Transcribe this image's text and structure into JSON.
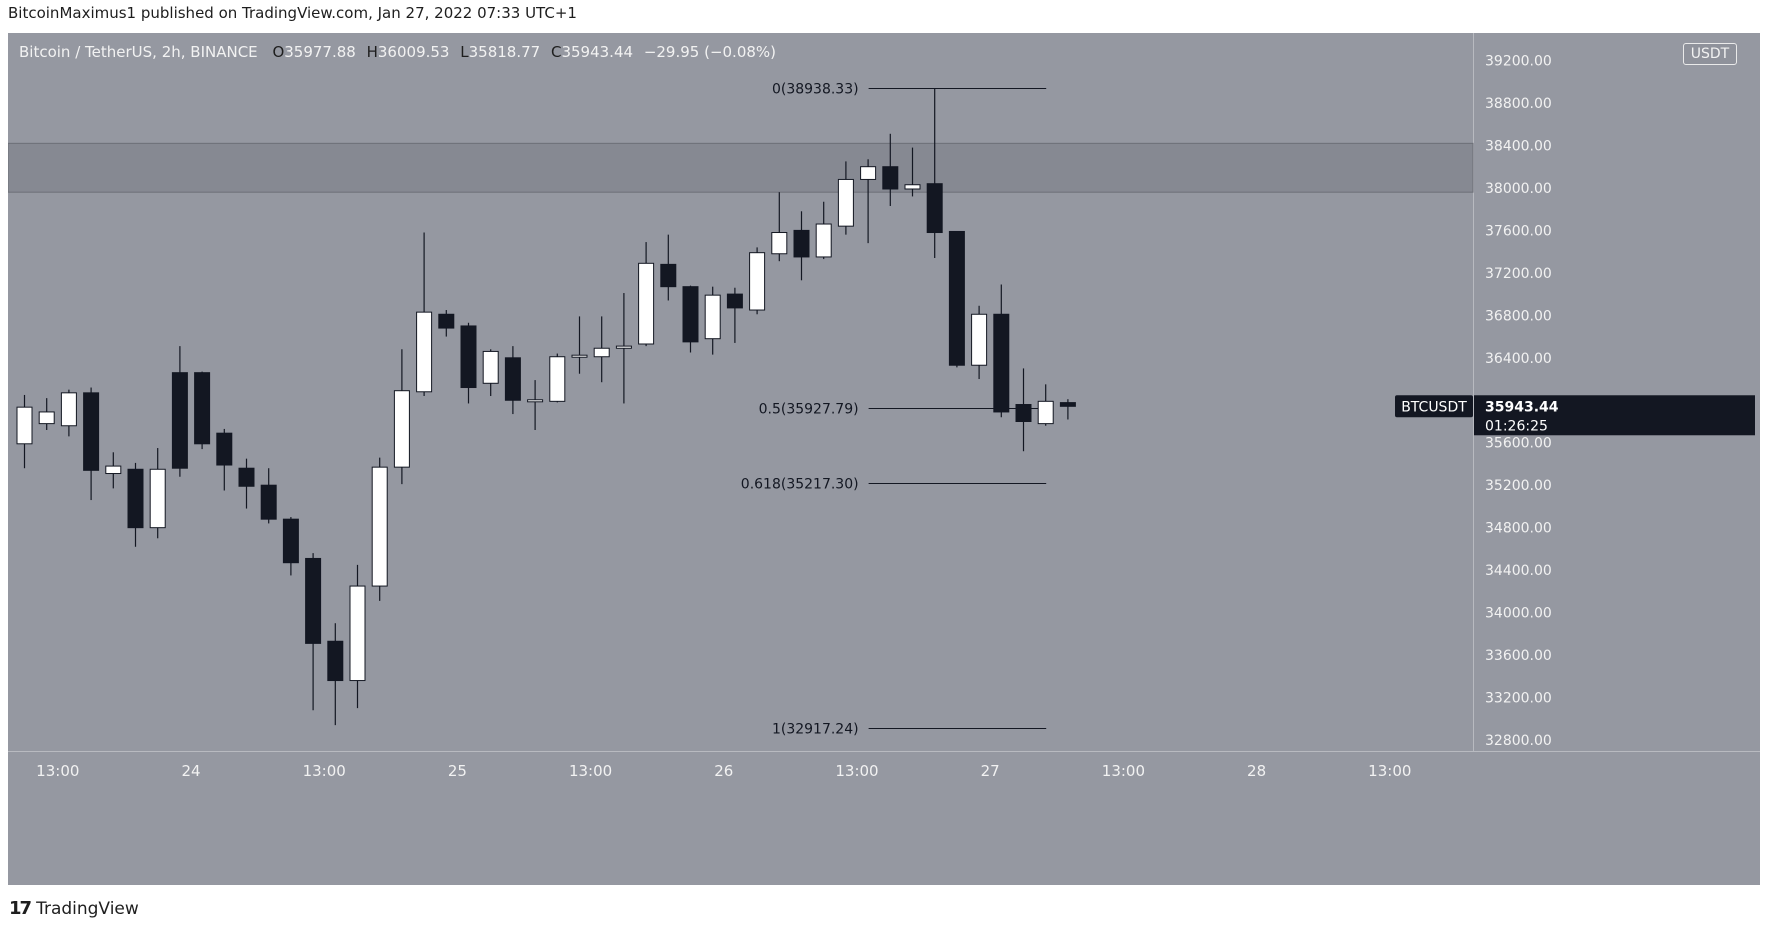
{
  "header": {
    "published_by": "BitcoinMaximus1 published on TradingView.com, Jan 27, 2022 07:33 UTC+1"
  },
  "chart_data": {
    "type": "candlestick",
    "symbol_line": "Bitcoin / TetherUS, 2h, BINANCE",
    "ohlc": {
      "o_label": "O",
      "o": "35977.88",
      "h_label": "H",
      "h": "36009.53",
      "l_label": "L",
      "l": "35818.77",
      "c_label": "C",
      "c": "35943.44",
      "change": "−29.95 (−0.08%)"
    },
    "currency": "USDT",
    "ylim": [
      32600,
      39350
    ],
    "y_ticks": [
      "32800.00",
      "33200.00",
      "33600.00",
      "34000.00",
      "34400.00",
      "34800.00",
      "35200.00",
      "35600.00",
      "36400.00",
      "36800.00",
      "37200.00",
      "37600.00",
      "38000.00",
      "38400.00",
      "38800.00",
      "39200.00"
    ],
    "x_ticks": [
      {
        "label": "13:00",
        "bar": 1.5
      },
      {
        "label": "24",
        "bar": 7.5
      },
      {
        "label": "13:00",
        "bar": 13.5
      },
      {
        "label": "25",
        "bar": 19.5
      },
      {
        "label": "13:00",
        "bar": 25.5
      },
      {
        "label": "26",
        "bar": 31.5
      },
      {
        "label": "13:00",
        "bar": 37.5
      },
      {
        "label": "27",
        "bar": 43.5
      },
      {
        "label": "13:00",
        "bar": 49.5
      },
      {
        "label": "28",
        "bar": 55.5
      },
      {
        "label": "13:00",
        "bar": 61.5
      }
    ],
    "resistance_zone": [
      37960,
      38420
    ],
    "fib_levels": [
      {
        "label": "0(38938.33)",
        "value": 38938.33
      },
      {
        "label": "0.5(35927.79)",
        "value": 35927.79
      },
      {
        "label": "0.618(35217.30)",
        "value": 35217.3
      },
      {
        "label": "1(32917.24)",
        "value": 32917.24
      }
    ],
    "fib_span": [
      38,
      46
    ],
    "last_price": {
      "symbol": "BTCUSDT",
      "price": "35943.44",
      "countdown": "01:26:25"
    },
    "candles": [
      [
        35590,
        35935,
        36050,
        35360
      ],
      [
        35780,
        35890,
        36020,
        35720
      ],
      [
        35760,
        36070,
        36100,
        35660
      ],
      [
        36070,
        35340,
        36120,
        35060
      ],
      [
        35310,
        35380,
        35510,
        35170
      ],
      [
        35350,
        34800,
        35410,
        34620
      ],
      [
        34800,
        35350,
        35550,
        34700
      ],
      [
        36260,
        35360,
        36510,
        35280
      ],
      [
        36260,
        35590,
        36270,
        35540
      ],
      [
        35690,
        35390,
        35730,
        35150
      ],
      [
        35360,
        35190,
        35450,
        34980
      ],
      [
        35200,
        34880,
        35360,
        34840
      ],
      [
        34880,
        34470,
        34900,
        34350
      ],
      [
        34510,
        33710,
        34560,
        33080
      ],
      [
        33730,
        33360,
        33900,
        32940
      ],
      [
        33360,
        34250,
        34450,
        33100
      ],
      [
        34250,
        35370,
        35460,
        34110
      ],
      [
        35370,
        36090,
        36480,
        35210
      ],
      [
        36080,
        36830,
        37580,
        36040
      ],
      [
        36810,
        36680,
        36850,
        36600
      ],
      [
        36700,
        36120,
        36730,
        35970
      ],
      [
        36160,
        36460,
        36480,
        36040
      ],
      [
        36400,
        36000,
        36510,
        35870
      ],
      [
        35990,
        36000,
        36190,
        35720
      ],
      [
        35990,
        36410,
        36440,
        35980
      ],
      [
        36410,
        36420,
        36790,
        36250
      ],
      [
        36410,
        36490,
        36790,
        36170
      ],
      [
        36490,
        36510,
        37010,
        35970
      ],
      [
        36530,
        37290,
        37490,
        36510
      ],
      [
        37280,
        37070,
        37560,
        36940
      ],
      [
        37070,
        36550,
        37080,
        36450
      ],
      [
        36580,
        36990,
        37070,
        36430
      ],
      [
        37000,
        36870,
        37060,
        36540
      ],
      [
        36850,
        37390,
        37440,
        36810
      ],
      [
        37380,
        37580,
        37960,
        37310
      ],
      [
        37600,
        37350,
        37780,
        37130
      ],
      [
        37350,
        37660,
        37870,
        37330
      ],
      [
        37640,
        38080,
        38250,
        37560
      ],
      [
        38080,
        38200,
        38270,
        37480
      ],
      [
        38200,
        37990,
        38510,
        37830
      ],
      [
        37990,
        38030,
        38380,
        37920
      ],
      [
        38040,
        37580,
        38938,
        37340
      ],
      [
        37590,
        36330,
        37590,
        36310
      ],
      [
        36330,
        36810,
        36890,
        36200
      ],
      [
        36810,
        35890,
        37090,
        35840
      ],
      [
        35960,
        35800,
        36300,
        35520
      ],
      [
        35780,
        35990,
        36150,
        35760
      ],
      [
        35978,
        35943,
        36010,
        35819
      ]
    ]
  }
}
